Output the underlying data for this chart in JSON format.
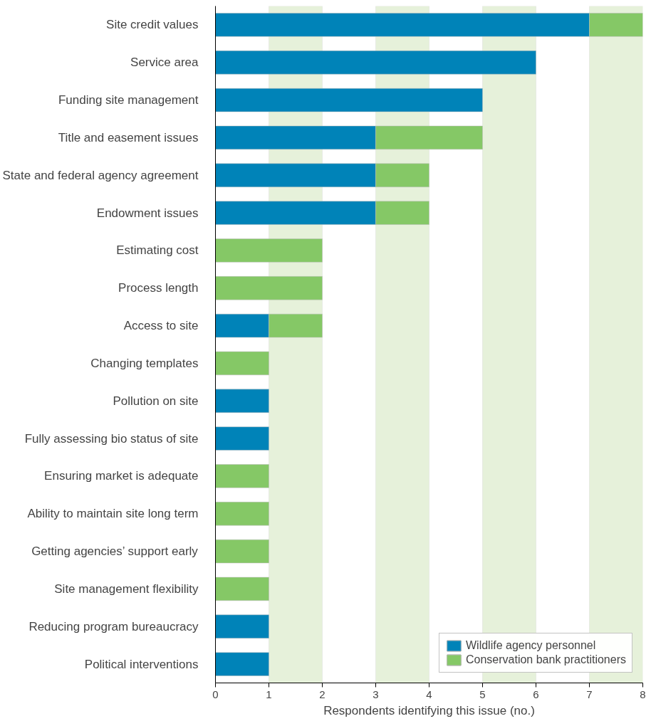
{
  "chart_data": {
    "type": "bar",
    "orientation": "horizontal",
    "stacked": true,
    "categories": [
      "Site credit values",
      "Service area",
      "Funding site management",
      "Title and easement issues",
      "State and federal agency agreement",
      "Endowment issues",
      "Estimating cost",
      "Process length",
      "Access to site",
      "Changing templates",
      "Pollution on site",
      "Fully assessing bio status of site",
      "Ensuring market is adequate",
      "Ability to maintain site long term",
      "Getting agencies’ support early",
      "Site management flexibility",
      "Reducing program bureaucracy",
      "Political interventions"
    ],
    "series": [
      {
        "name": "Wildlife agency personnel",
        "color": "#0083b8",
        "values": [
          7,
          6,
          5,
          3,
          3,
          3,
          null,
          null,
          1,
          null,
          1,
          1,
          null,
          null,
          null,
          null,
          1,
          1
        ]
      },
      {
        "name": "Conservation bank practitioners",
        "color": "#85c866",
        "values": [
          1,
          null,
          null,
          2,
          1,
          1,
          2,
          2,
          1,
          1,
          null,
          null,
          1,
          1,
          1,
          1,
          null,
          null
        ]
      }
    ],
    "xlabel": "Respondents identifying this issue (no.)",
    "xlim": [
      0,
      8
    ],
    "xticks": [
      0,
      1,
      2,
      3,
      4,
      5,
      6,
      7,
      8
    ],
    "bands": [
      {
        "axis": "x",
        "from": 1,
        "to": 2,
        "color": "#e6f1da"
      },
      {
        "axis": "x",
        "from": 3,
        "to": 4,
        "color": "#e6f1da"
      },
      {
        "axis": "x",
        "from": 5,
        "to": 6,
        "color": "#e6f1da"
      },
      {
        "axis": "x",
        "from": 7,
        "to": 8,
        "color": "#e6f1da"
      }
    ],
    "grid": false,
    "legend": "bottom right"
  }
}
